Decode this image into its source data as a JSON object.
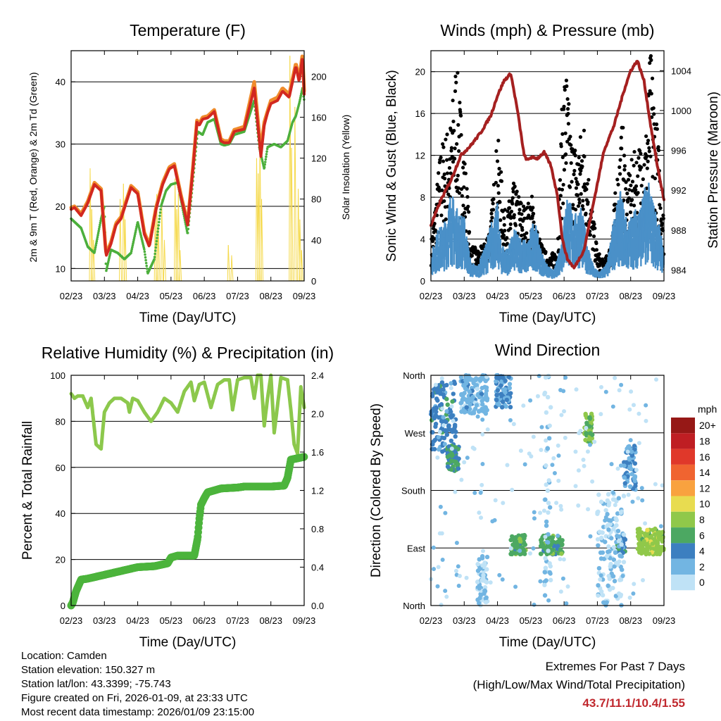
{
  "colors": {
    "temp_red": "#d2281f",
    "temp_orange": "#f08c2c",
    "dewpoint_green": "#4caf3c",
    "solar_yellow": "#f5d94a",
    "gust_black": "#000000",
    "wind_blue": "#4a90c8",
    "pressure_maroon": "#a52020",
    "rh_lightgreen": "#8cc84c",
    "precip_green": "#4cb43c",
    "extremes_red": "#c0282e"
  },
  "chart_data": [
    {
      "id": "temperature",
      "type": "line",
      "title": "Temperature (F)",
      "xlabel": "Time (Day/UTC)",
      "ylabel": "2m & 9m T (Red, Orange) & 2m Td (Green)",
      "ylabel_right": "Solar Insolation (Yellow)",
      "xlim": [
        0,
        7
      ],
      "ylim": [
        8,
        45
      ],
      "ylim_right": [
        0,
        225
      ],
      "x_ticks": [
        "02/23",
        "03/23",
        "04/23",
        "05/23",
        "06/23",
        "07/23",
        "08/23",
        "09/23"
      ],
      "y_ticks": [
        10,
        20,
        30,
        40
      ],
      "y_ticks_right": [
        0,
        40,
        80,
        120,
        160,
        200
      ],
      "series": [
        {
          "name": "2m T",
          "color": "#d2281f",
          "x": [
            0,
            0.1,
            0.3,
            0.5,
            0.7,
            0.9,
            1.05,
            1.2,
            1.35,
            1.5,
            1.8,
            2.0,
            2.2,
            2.35,
            2.55,
            2.75,
            2.95,
            3.1,
            3.3,
            3.5,
            3.65,
            3.78,
            3.85,
            3.95,
            4.1,
            4.3,
            4.5,
            4.6,
            4.75,
            4.9,
            5.2,
            5.5,
            5.7,
            5.8,
            5.9,
            6.0,
            6.2,
            6.35,
            6.55,
            6.75,
            6.85,
            6.95,
            7.0
          ],
          "y": [
            19.5,
            19.8,
            18.5,
            20.5,
            23.5,
            22.5,
            12,
            14,
            17,
            18,
            23,
            22,
            15.5,
            13.5,
            19.5,
            23.5,
            26,
            26.5,
            21.5,
            17,
            25.5,
            33.5,
            33,
            34,
            34.2,
            35.2,
            30.5,
            30.2,
            30.2,
            32,
            32.4,
            39,
            28,
            33,
            35,
            36.5,
            37,
            38.5,
            37.5,
            42.5,
            40,
            44,
            38
          ]
        },
        {
          "name": "9m T",
          "color": "#f08c2c",
          "x": [
            0,
            0.1,
            0.3,
            0.5,
            0.7,
            0.9,
            1.05,
            1.2,
            1.35,
            1.5,
            1.8,
            2.0,
            2.2,
            2.35,
            2.55,
            2.75,
            2.95,
            3.1,
            3.3,
            3.5,
            3.65,
            3.78,
            3.85,
            3.95,
            4.1,
            4.3,
            4.5,
            4.6,
            4.75,
            4.9,
            5.2,
            5.5,
            5.7,
            5.8,
            5.9,
            6.0,
            6.2,
            6.35,
            6.55,
            6.75,
            6.85,
            6.95,
            7.0
          ],
          "y": [
            19.8,
            20,
            18.8,
            20.8,
            23.8,
            22.8,
            12.3,
            14.3,
            17.3,
            18.3,
            23.3,
            22.3,
            15.8,
            13.8,
            19.8,
            23.8,
            26.3,
            26.8,
            21.8,
            17.3,
            25.8,
            33.8,
            33.3,
            34.3,
            34.5,
            35.5,
            30.8,
            30.5,
            30.5,
            32.3,
            32.8,
            40,
            29,
            33.5,
            35.3,
            37,
            37.5,
            39,
            38,
            43,
            40.5,
            44.5,
            38.5
          ]
        },
        {
          "name": "2m Td",
          "color": "#4caf3c",
          "x": [
            0,
            0.3,
            0.5,
            0.7,
            0.9,
            1.0,
            1.05,
            1.2,
            1.4,
            1.6,
            1.8,
            2.0,
            2.2,
            2.3,
            2.5,
            2.7,
            2.85,
            3.0,
            3.2,
            3.5,
            3.65,
            3.8,
            3.95,
            4.1,
            4.3,
            4.5,
            4.6,
            4.75,
            4.9,
            5.2,
            5.5,
            5.65,
            5.8,
            5.9,
            6.1,
            6.3,
            6.5,
            6.65,
            6.75,
            6.85,
            6.95,
            7.0
          ],
          "y": [
            18,
            16.5,
            13.5,
            12.5,
            18,
            20,
            9.5,
            13,
            12.5,
            11.5,
            12.5,
            17.5,
            13,
            9.2,
            11.5,
            20,
            22.5,
            23.5,
            23.8,
            15.5,
            23.5,
            32,
            31.5,
            33.5,
            34,
            30,
            29.8,
            30,
            31.5,
            32,
            37,
            29.5,
            26,
            29.5,
            30,
            29.5,
            30.5,
            33.5,
            34.5,
            36.5,
            39,
            37
          ]
        },
        {
          "name": "Solar",
          "color": "#f5d94a",
          "axis": "right",
          "x": [
            0.55,
            0.6,
            0.65,
            1.45,
            1.55,
            1.6,
            2.5,
            2.55,
            2.6,
            2.7,
            2.78,
            3.1,
            3.15,
            3.2,
            3.25,
            4.7,
            4.8,
            5.55,
            5.6,
            5.65,
            5.7,
            6.55,
            6.6,
            6.7,
            6.8,
            6.85,
            6.9
          ],
          "y": [
            110,
            70,
            40,
            80,
            95,
            60,
            60,
            85,
            55,
            80,
            40,
            100,
            70,
            85,
            30,
            35,
            25,
            120,
            105,
            140,
            80,
            220,
            130,
            170,
            90,
            60,
            30
          ]
        }
      ]
    },
    {
      "id": "winds",
      "type": "scatter",
      "title": "Winds (mph) & Pressure (mb)",
      "xlabel": "Time (Day/UTC)",
      "ylabel": "Sonic Wind & Gust (Blue, Black)",
      "ylabel_right": "Station Pressure (Maroon)",
      "xlim": [
        0,
        7
      ],
      "ylim": [
        0,
        22
      ],
      "ylim_right": [
        982.9,
        1006
      ],
      "x_ticks": [
        "02/23",
        "03/23",
        "04/23",
        "05/23",
        "06/23",
        "07/23",
        "08/23",
        "09/23"
      ],
      "y_ticks": [
        0,
        4,
        8,
        12,
        16,
        20
      ],
      "y_ticks_right": [
        984,
        988,
        992,
        996,
        1000,
        1004
      ],
      "series": [
        {
          "name": "Sonic Wind",
          "color": "#4a90c8",
          "x": [
            0,
            0.2,
            0.4,
            0.6,
            0.8,
            1.0,
            1.2,
            1.4,
            1.6,
            1.8,
            2.0,
            2.1,
            2.3,
            2.5,
            2.7,
            2.9,
            3.1,
            3.3,
            3.5,
            3.7,
            3.9,
            4.1,
            4.3,
            4.5,
            4.7,
            4.9,
            5.1,
            5.3,
            5.5,
            5.7,
            5.9,
            6.1,
            6.3,
            6.5,
            6.7,
            6.9,
            7.0
          ],
          "y": [
            2,
            4,
            4.5,
            7,
            5.5,
            5,
            1.5,
            1.2,
            2.5,
            4.5,
            6,
            3,
            2.5,
            4,
            3.5,
            3,
            5,
            2.5,
            1.2,
            0.8,
            3,
            7,
            5,
            6,
            3,
            1,
            0.8,
            1.5,
            5,
            7,
            4.5,
            5.5,
            6,
            8,
            6,
            4,
            2.5
          ]
        },
        {
          "name": "Gust",
          "color": "#000000",
          "x": [
            0,
            0.15,
            0.3,
            0.45,
            0.6,
            0.75,
            0.9,
            1.05,
            1.2,
            1.4,
            1.6,
            1.8,
            2.0,
            2.1,
            2.25,
            2.45,
            2.65,
            2.85,
            3.05,
            3.2,
            3.4,
            3.6,
            3.8,
            3.95,
            4.05,
            4.2,
            4.4,
            4.6,
            4.8,
            5.0,
            5.2,
            5.4,
            5.6,
            5.75,
            5.9,
            6.05,
            6.25,
            6.45,
            6.6,
            6.75,
            6.9,
            7.0
          ],
          "y": [
            3,
            7,
            11,
            12,
            13,
            18,
            14,
            9,
            3,
            2.5,
            3,
            5,
            12,
            9,
            5,
            8,
            7,
            6,
            7,
            4,
            2.5,
            2,
            3,
            15,
            18,
            12,
            11,
            13,
            7,
            2.5,
            1.5,
            3,
            9,
            13,
            8,
            10,
            11,
            12,
            19,
            14,
            9,
            5
          ]
        },
        {
          "name": "Station Pressure",
          "color": "#a52020",
          "axis": "right",
          "x": [
            0,
            0.3,
            0.6,
            0.9,
            1.2,
            1.5,
            1.8,
            2.0,
            2.2,
            2.4,
            2.6,
            2.8,
            2.9,
            3.0,
            3.2,
            3.4,
            3.6,
            3.8,
            3.95,
            4.1,
            4.3,
            4.6,
            4.9,
            5.2,
            5.5,
            5.8,
            6.0,
            6.2,
            6.4,
            6.6,
            6.8,
            7.0
          ],
          "y": [
            988.5,
            991,
            993,
            995.5,
            996.5,
            997.8,
            999.5,
            1001.5,
            1003,
            1003.7,
            1000,
            995.5,
            995,
            995.3,
            995.2,
            995.8,
            994.5,
            991.5,
            987,
            985.1,
            984.2,
            986,
            991,
            996,
            998.5,
            1002,
            1004,
            1005,
            1003,
            998.5,
            994.5,
            991
          ]
        }
      ]
    },
    {
      "id": "humidity",
      "type": "line",
      "title": "Relative Humidity (%) & Precipitation (in)",
      "xlabel": "Time (Day/UTC)",
      "ylabel": "Percent & Total Rainfall",
      "xlim": [
        0,
        7
      ],
      "ylim": [
        0,
        100
      ],
      "ylim_right": [
        0,
        2.4
      ],
      "x_ticks": [
        "02/23",
        "03/23",
        "04/23",
        "05/23",
        "06/23",
        "07/23",
        "08/23",
        "09/23"
      ],
      "y_ticks": [
        0,
        20,
        40,
        60,
        80,
        100
      ],
      "y_ticks_right": [
        0.0,
        0.4,
        0.8,
        1.2,
        1.6,
        2.0,
        2.4
      ],
      "series": [
        {
          "name": "Relative Humidity",
          "color": "#8cc84c",
          "x": [
            0,
            0.1,
            0.2,
            0.35,
            0.5,
            0.6,
            0.75,
            0.9,
            1.0,
            1.15,
            1.3,
            1.5,
            1.7,
            1.75,
            1.85,
            2.0,
            2.2,
            2.4,
            2.6,
            2.8,
            3.0,
            3.2,
            3.4,
            3.6,
            3.7,
            3.85,
            4.0,
            4.2,
            4.4,
            4.6,
            4.75,
            4.85,
            5.0,
            5.2,
            5.4,
            5.5,
            5.6,
            5.7,
            5.8,
            5.9,
            6.0,
            6.1,
            6.3,
            6.5,
            6.6,
            6.7,
            6.8,
            6.9,
            7.0
          ],
          "y": [
            92,
            90,
            91,
            91,
            86,
            90,
            70,
            68,
            84,
            88,
            90,
            90,
            88,
            84,
            90,
            89,
            84,
            80,
            84,
            90,
            88,
            84,
            93,
            97,
            89,
            96,
            97,
            86,
            96,
            98,
            98,
            85,
            98,
            99,
            99,
            90,
            100,
            100,
            78,
            90,
            100,
            75,
            99,
            98,
            85,
            70,
            66,
            95,
            86
          ]
        },
        {
          "name": "Total Precipitation",
          "color": "#4cb43c",
          "axis": "right",
          "x": [
            0,
            0.05,
            0.15,
            0.3,
            0.5,
            1.0,
            1.5,
            2.0,
            2.5,
            2.9,
            3.0,
            3.2,
            3.7,
            3.8,
            3.85,
            3.9,
            4.0,
            4.1,
            4.5,
            5.0,
            5.2,
            5.5,
            6.0,
            6.4,
            6.5,
            6.6,
            7.0
          ],
          "y": [
            0.0,
            0.03,
            0.15,
            0.27,
            0.28,
            0.32,
            0.36,
            0.4,
            0.41,
            0.44,
            0.5,
            0.52,
            0.52,
            0.7,
            0.9,
            1.05,
            1.12,
            1.18,
            1.22,
            1.23,
            1.24,
            1.24,
            1.24,
            1.25,
            1.33,
            1.52,
            1.55
          ]
        }
      ]
    },
    {
      "id": "wind_direction",
      "type": "scatter",
      "title": "Wind Direction",
      "xlabel": "Time (Day/UTC)",
      "ylabel": "Direction (Colored By Speed)",
      "xlim": [
        0,
        7
      ],
      "ylim": [
        0,
        360
      ],
      "x_ticks": [
        "02/23",
        "03/23",
        "04/23",
        "05/23",
        "06/23",
        "07/23",
        "08/23",
        "09/23"
      ],
      "y_ticks": [
        "North",
        "East",
        "South",
        "West",
        "North"
      ],
      "legend_title": "mph",
      "legend": [
        {
          "label": "20+",
          "color": "#961816"
        },
        {
          "label": "18",
          "color": "#bf1e23"
        },
        {
          "label": "16",
          "color": "#e0382a"
        },
        {
          "label": "14",
          "color": "#f06430"
        },
        {
          "label": "12",
          "color": "#f9a23f"
        },
        {
          "label": "10",
          "color": "#e8dc50"
        },
        {
          "label": "8",
          "color": "#90c84a"
        },
        {
          "label": "6",
          "color": "#4ca862"
        },
        {
          "label": "4",
          "color": "#3c7fc0"
        },
        {
          "label": "2",
          "color": "#72b5e2"
        },
        {
          "label": "0",
          "color": "#bfe2f6"
        }
      ],
      "clusters": [
        {
          "x": [
            0,
            0.75
          ],
          "y": [
            240,
            350
          ],
          "speed": 4
        },
        {
          "x": [
            0.5,
            0.85
          ],
          "y": [
            210,
            250
          ],
          "speed": 5
        },
        {
          "x": [
            0.9,
            1.7
          ],
          "y": [
            300,
            360
          ],
          "speed": 2
        },
        {
          "x": [
            1.95,
            2.4
          ],
          "y": [
            310,
            360
          ],
          "speed": 3
        },
        {
          "x": [
            2.4,
            2.85
          ],
          "y": [
            80,
            110
          ],
          "speed": 6
        },
        {
          "x": [
            3.3,
            3.95
          ],
          "y": [
            80,
            110
          ],
          "speed": 6
        },
        {
          "x": [
            4.6,
            4.85
          ],
          "y": [
            250,
            300
          ],
          "speed": 7
        },
        {
          "x": [
            5.6,
            5.85
          ],
          "y": [
            80,
            110
          ],
          "speed": 4
        },
        {
          "x": [
            6.2,
            7.0
          ],
          "y": [
            80,
            120
          ],
          "speed": 8
        },
        {
          "x": [
            1.4,
            1.7
          ],
          "y": [
            0,
            80
          ],
          "speed": 1
        },
        {
          "x": [
            3.4,
            3.6
          ],
          "y": [
            0,
            360
          ],
          "speed": 1
        },
        {
          "x": [
            5.0,
            5.8
          ],
          "y": [
            0,
            180
          ],
          "speed": 1
        },
        {
          "x": [
            5.8,
            6.15
          ],
          "y": [
            180,
            250
          ],
          "speed": 3
        }
      ]
    }
  ],
  "station": {
    "location": "Location: Camden",
    "elevation": "Station elevation: 150.327 m",
    "latlon": "Station lat/lon: 43.3399; -75.743",
    "created": "Figure created on Fri, 2026-01-09, at 23:33 UTC",
    "latest": "Most recent data timestamp: 2026/01/09 23:15:00"
  },
  "extremes": {
    "title": "Extremes For Past 7 Days",
    "subtitle": "(High/Low/Max Wind/Total Precipitation)",
    "values": "43.7/11.1/10.4/1.55"
  }
}
